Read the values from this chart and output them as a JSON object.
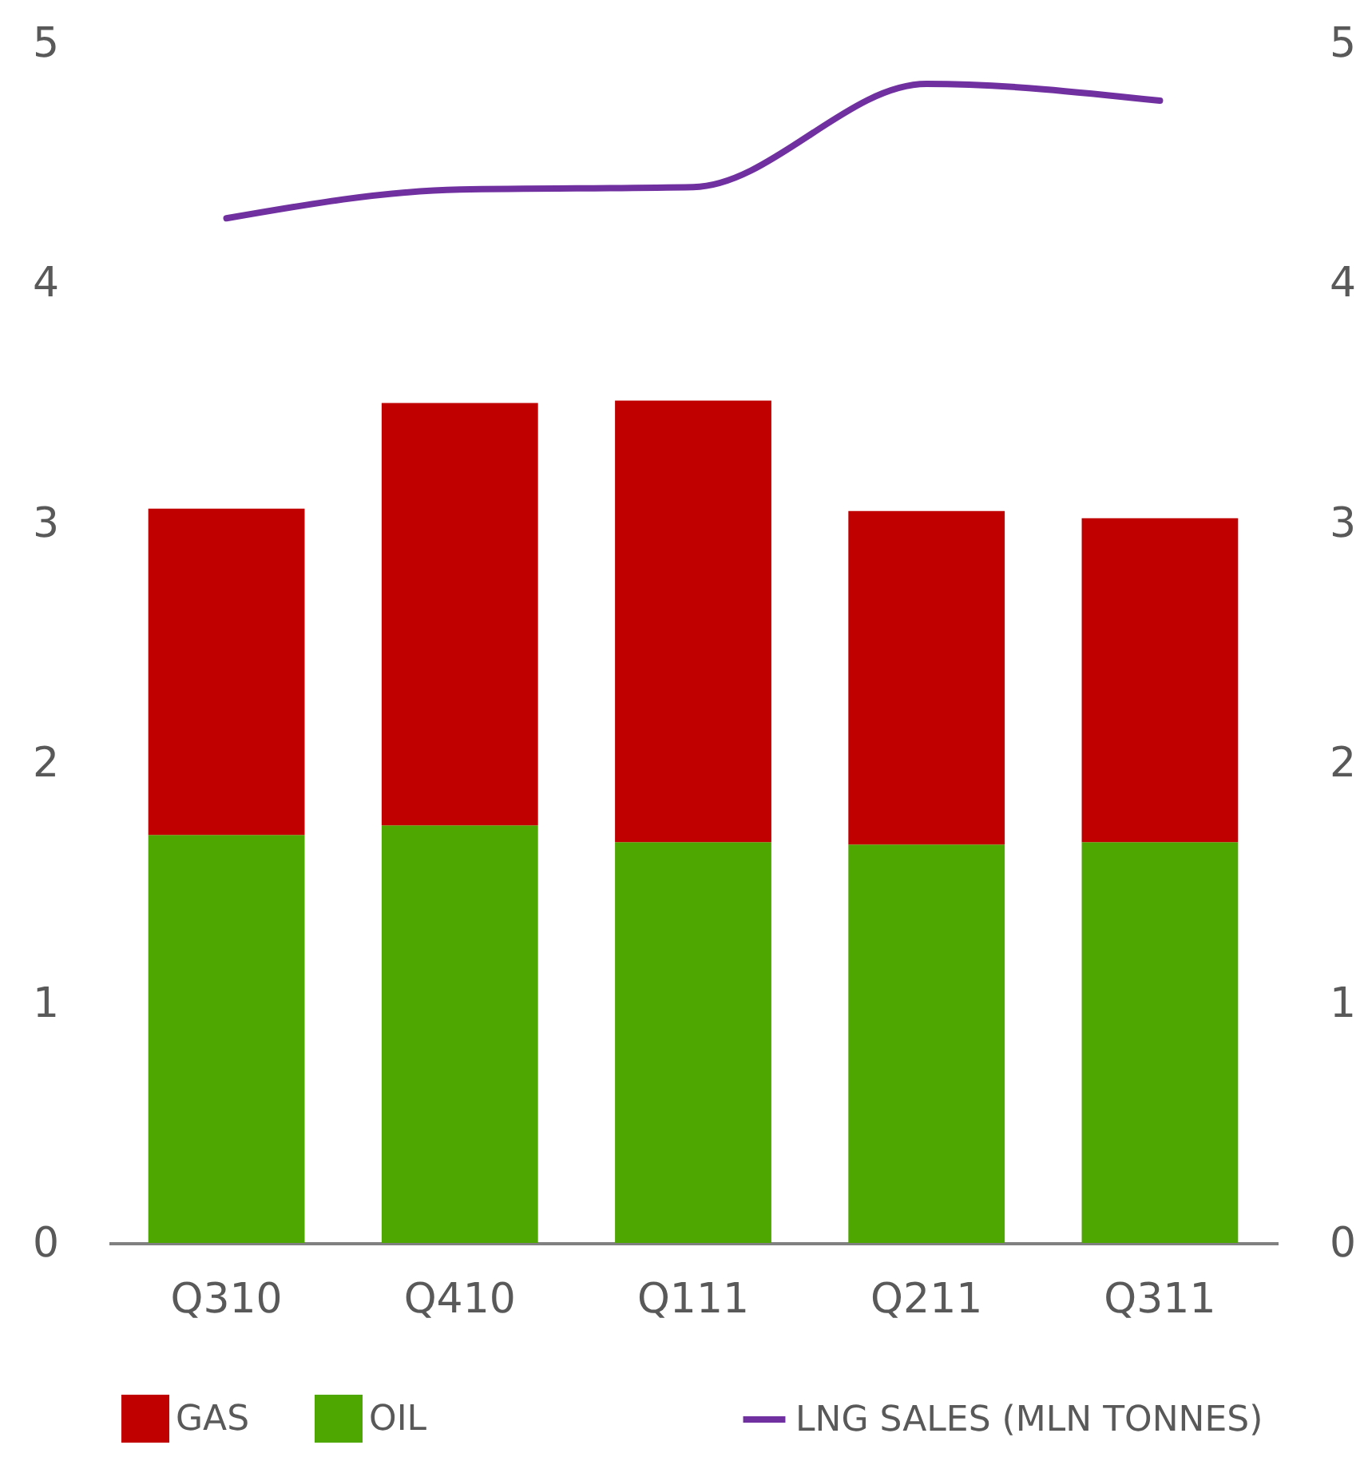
{
  "chart_data": {
    "type": "bar",
    "stacked": true,
    "legend": "bottom",
    "grid": false,
    "categories": [
      "Q310",
      "Q410",
      "Q111",
      "Q211",
      "Q311"
    ],
    "series": [
      {
        "name": "OIL",
        "color": "#4ea600",
        "values": [
          1.7,
          1.74,
          1.67,
          1.66,
          1.67
        ]
      },
      {
        "name": "GAS",
        "color": "#c00000",
        "values": [
          1.36,
          1.76,
          1.84,
          1.39,
          1.35
        ]
      },
      {
        "name": "LNG SALES (MLN TONNES)",
        "type": "line",
        "axis": "y2",
        "color": "#7030a0",
        "values": [
          4.27,
          4.39,
          4.4,
          4.83,
          4.76
        ]
      }
    ],
    "ylim": [
      0,
      5
    ],
    "yticks": [
      0,
      1,
      2,
      3,
      4,
      5
    ],
    "y2lim": [
      0,
      5
    ],
    "y2ticks": [
      0,
      1,
      2,
      3,
      4,
      5
    ]
  }
}
